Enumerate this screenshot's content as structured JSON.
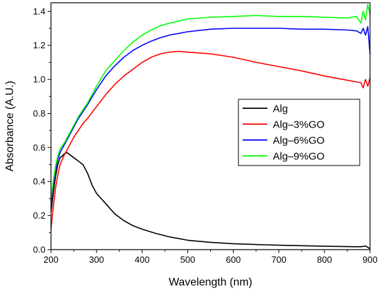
{
  "chart_data": {
    "type": "line",
    "xlabel": "Wavelength (nm)",
    "ylabel": "Absorbance (A.U.)",
    "xlim": [
      200,
      900
    ],
    "ylim": [
      0.0,
      1.45
    ],
    "xticks": [
      200,
      300,
      400,
      500,
      600,
      700,
      800,
      900
    ],
    "yticks": [
      0.0,
      0.2,
      0.4,
      0.6,
      0.8,
      1.0,
      1.2,
      1.4
    ],
    "xtick_labels": [
      "200",
      "300",
      "400",
      "500",
      "600",
      "700",
      "800",
      "900"
    ],
    "ytick_labels": [
      "0.0",
      "0.2",
      "0.4",
      "0.6",
      "0.8",
      "1.0",
      "1.2",
      "1.4"
    ],
    "grid": false,
    "legend_position": "center-right",
    "series": [
      {
        "name": "Alg",
        "color": "#000000",
        "x": [
          200,
          205,
          210,
          215,
          220,
          225,
          230,
          235,
          240,
          250,
          260,
          270,
          280,
          290,
          300,
          320,
          340,
          360,
          380,
          400,
          430,
          460,
          500,
          550,
          600,
          650,
          700,
          750,
          800,
          850,
          880,
          890,
          900
        ],
        "y": [
          0.22,
          0.33,
          0.43,
          0.5,
          0.54,
          0.55,
          0.565,
          0.57,
          0.56,
          0.54,
          0.52,
          0.5,
          0.45,
          0.38,
          0.33,
          0.27,
          0.21,
          0.17,
          0.14,
          0.12,
          0.095,
          0.075,
          0.055,
          0.043,
          0.035,
          0.03,
          0.026,
          0.023,
          0.02,
          0.018,
          0.017,
          0.022,
          0.005
        ]
      },
      {
        "name": "Alg–3%GO",
        "color": "#ff0000",
        "x": [
          200,
          205,
          210,
          215,
          220,
          230,
          240,
          250,
          260,
          270,
          280,
          300,
          320,
          340,
          360,
          380,
          400,
          420,
          440,
          460,
          480,
          500,
          550,
          600,
          650,
          700,
          750,
          800,
          850,
          880,
          885,
          890,
          895,
          900
        ],
        "y": [
          0.12,
          0.25,
          0.36,
          0.44,
          0.5,
          0.56,
          0.61,
          0.66,
          0.7,
          0.74,
          0.77,
          0.84,
          0.91,
          0.97,
          1.02,
          1.06,
          1.1,
          1.13,
          1.15,
          1.16,
          1.165,
          1.16,
          1.15,
          1.13,
          1.1,
          1.075,
          1.05,
          1.02,
          0.995,
          0.98,
          0.95,
          1.0,
          0.96,
          1.01
        ]
      },
      {
        "name": "Alg–6%GO",
        "color": "#0000ff",
        "x": [
          200,
          205,
          210,
          215,
          220,
          230,
          240,
          250,
          260,
          270,
          280,
          300,
          320,
          340,
          360,
          380,
          400,
          420,
          440,
          460,
          500,
          550,
          600,
          650,
          700,
          750,
          800,
          850,
          870,
          880,
          885,
          890,
          895,
          900
        ],
        "y": [
          0.28,
          0.38,
          0.47,
          0.53,
          0.57,
          0.62,
          0.67,
          0.72,
          0.77,
          0.81,
          0.85,
          0.94,
          1.02,
          1.08,
          1.13,
          1.17,
          1.2,
          1.225,
          1.245,
          1.26,
          1.28,
          1.295,
          1.3,
          1.3,
          1.3,
          1.295,
          1.295,
          1.29,
          1.285,
          1.27,
          1.3,
          1.26,
          1.31,
          1.15
        ]
      },
      {
        "name": "Alg–9%GO",
        "color": "#00ff00",
        "x": [
          200,
          205,
          210,
          215,
          220,
          230,
          240,
          250,
          260,
          270,
          280,
          300,
          320,
          340,
          360,
          380,
          400,
          420,
          440,
          460,
          500,
          550,
          600,
          650,
          700,
          750,
          800,
          850,
          870,
          880,
          885,
          890,
          895,
          900
        ],
        "y": [
          0.3,
          0.4,
          0.49,
          0.55,
          0.59,
          0.63,
          0.68,
          0.73,
          0.78,
          0.82,
          0.86,
          0.96,
          1.05,
          1.11,
          1.17,
          1.22,
          1.26,
          1.29,
          1.315,
          1.33,
          1.355,
          1.365,
          1.37,
          1.375,
          1.37,
          1.37,
          1.365,
          1.36,
          1.37,
          1.33,
          1.4,
          1.35,
          1.44,
          1.38
        ]
      }
    ]
  }
}
